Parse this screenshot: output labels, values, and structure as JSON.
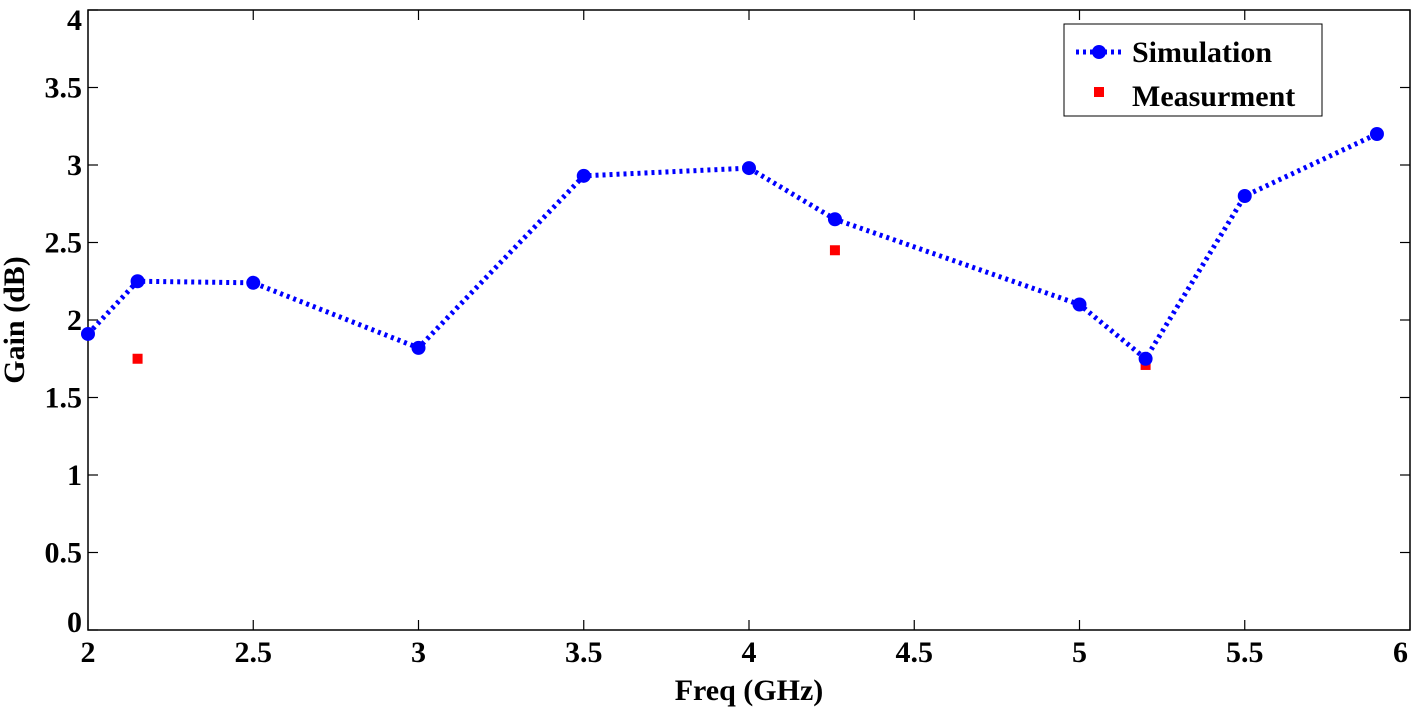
{
  "chart_data": {
    "type": "line",
    "title": "",
    "xlabel": "Freq (GHz)",
    "ylabel": "Gain (dB)",
    "xlim": [
      2,
      6
    ],
    "ylim": [
      0,
      4
    ],
    "xticks": [
      2,
      2.5,
      3,
      3.5,
      4,
      4.5,
      5,
      5.5,
      6
    ],
    "xtick_labels": [
      "2",
      "2.5",
      "3",
      "3.5",
      "4",
      "4.5",
      "5",
      "5.5",
      "6"
    ],
    "yticks": [
      0,
      0.5,
      1,
      1.5,
      2,
      2.5,
      3,
      3.5,
      4
    ],
    "ytick_labels": [
      "0",
      "0.5",
      "1",
      "1.5",
      "2",
      "2.5",
      "3",
      "3.5",
      "4"
    ],
    "grid": false,
    "legend_position": "top-right",
    "series": [
      {
        "name": "Simulation",
        "style": "dotted-line-circle-markers",
        "color": "#0000ff",
        "points": [
          {
            "x": 2.0,
            "y": 1.91
          },
          {
            "x": 2.15,
            "y": 2.25
          },
          {
            "x": 2.5,
            "y": 2.24
          },
          {
            "x": 3.0,
            "y": 1.82
          },
          {
            "x": 3.5,
            "y": 2.93
          },
          {
            "x": 4.0,
            "y": 2.98
          },
          {
            "x": 4.26,
            "y": 2.65
          },
          {
            "x": 5.0,
            "y": 2.1
          },
          {
            "x": 5.2,
            "y": 1.75
          },
          {
            "x": 5.5,
            "y": 2.8
          },
          {
            "x": 5.9,
            "y": 3.2
          }
        ]
      },
      {
        "name": "Measurment",
        "style": "square-markers",
        "color": "#ff0000",
        "points": [
          {
            "x": 2.15,
            "y": 1.75
          },
          {
            "x": 4.26,
            "y": 2.45
          },
          {
            "x": 5.2,
            "y": 1.71
          }
        ]
      }
    ]
  }
}
